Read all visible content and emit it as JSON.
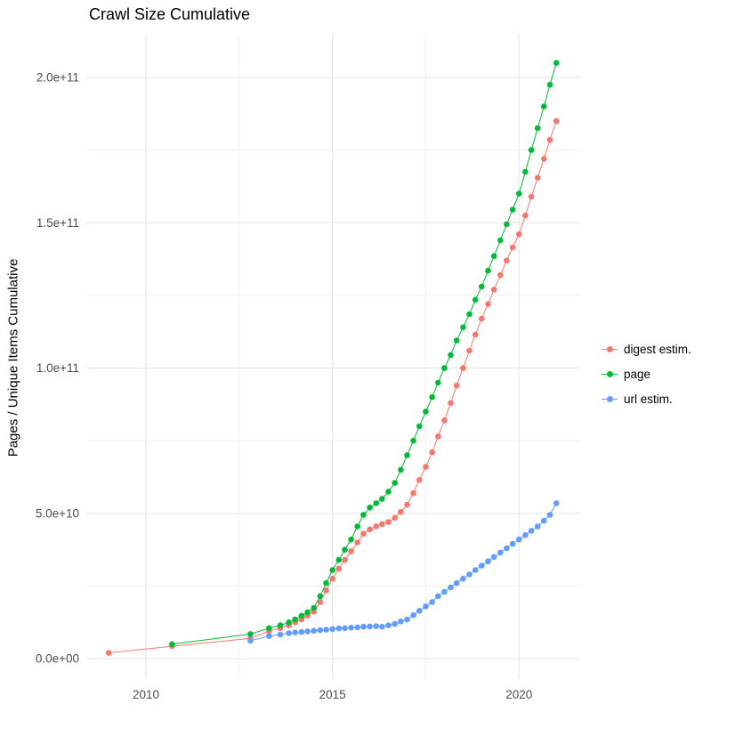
{
  "title": "Crawl Size Cumulative",
  "y_axis_title": "Pages / Unique Items Cumulative",
  "legend": {
    "items": [
      {
        "label": "digest estim.",
        "color": "#F8766D"
      },
      {
        "label": "page",
        "color": "#00BA38"
      },
      {
        "label": "url estim.",
        "color": "#619CFF"
      }
    ]
  },
  "chart_data": {
    "type": "scatter",
    "title": "Crawl Size Cumulative",
    "xlabel": "",
    "ylabel": "Pages / Unique Items Cumulative",
    "y_unit": "values stored in billions (1e9 items)",
    "xlim": [
      2008.4,
      2021.64
    ],
    "ylim": [
      -7,
      215
    ],
    "grid": true,
    "legend_position": "right",
    "x_ticks": {
      "major": [
        2010,
        2015,
        2020
      ],
      "minor": [
        2012.5,
        2017.5
      ],
      "labels": [
        "2010",
        "2015",
        "2020"
      ]
    },
    "y_ticks": {
      "major": [
        0,
        50,
        100,
        150,
        200
      ],
      "minor": [
        25,
        75,
        125,
        175
      ],
      "labels": [
        "0.0e+00",
        "5.0e+10",
        "1.0e+11",
        "1.5e+11",
        "2.0e+11"
      ]
    },
    "colors": {
      "digest": "#F8766D",
      "page": "#00BA38",
      "url": "#619CFF",
      "grid_major": "#e3e3e3",
      "grid_minor": "#f1f1f1",
      "axis_text": "#4d4d4d"
    },
    "series": [
      {
        "name": "digest estim.",
        "color": "#F8766D",
        "points": [
          [
            2009,
            2
          ],
          [
            2010.7,
            4.3
          ],
          [
            2012.8,
            7
          ],
          [
            2013.3,
            9.5
          ],
          [
            2013.6,
            10.5
          ],
          [
            2013.83,
            11.5
          ],
          [
            2014,
            12.5
          ],
          [
            2014.17,
            13.5
          ],
          [
            2014.33,
            14.8
          ],
          [
            2014.5,
            16.2
          ],
          [
            2014.67,
            19.5
          ],
          [
            2014.83,
            23.5
          ],
          [
            2015,
            27.5
          ],
          [
            2015.17,
            31
          ],
          [
            2015.33,
            34
          ],
          [
            2015.5,
            37
          ],
          [
            2015.67,
            40
          ],
          [
            2015.83,
            43
          ],
          [
            2016,
            44.5
          ],
          [
            2016.17,
            45.5
          ],
          [
            2016.33,
            46.3
          ],
          [
            2016.5,
            47
          ],
          [
            2016.67,
            48.5
          ],
          [
            2016.83,
            50.5
          ],
          [
            2017,
            53
          ],
          [
            2017.17,
            57
          ],
          [
            2017.33,
            61.5
          ],
          [
            2017.5,
            66
          ],
          [
            2017.67,
            71
          ],
          [
            2017.83,
            76.5
          ],
          [
            2018,
            82
          ],
          [
            2018.17,
            88
          ],
          [
            2018.33,
            94
          ],
          [
            2018.5,
            100
          ],
          [
            2018.67,
            106
          ],
          [
            2018.83,
            111.5
          ],
          [
            2019,
            117
          ],
          [
            2019.17,
            122
          ],
          [
            2019.33,
            127
          ],
          [
            2019.5,
            132
          ],
          [
            2019.67,
            137
          ],
          [
            2019.83,
            141.5
          ],
          [
            2020,
            146
          ],
          [
            2020.17,
            152.5
          ],
          [
            2020.33,
            159
          ],
          [
            2020.5,
            165.5
          ],
          [
            2020.67,
            172
          ],
          [
            2020.83,
            178.5
          ],
          [
            2021,
            185
          ]
        ]
      },
      {
        "name": "page",
        "color": "#00BA38",
        "points": [
          [
            2010.7,
            5
          ],
          [
            2012.8,
            8.5
          ],
          [
            2013.3,
            10.5
          ],
          [
            2013.6,
            11.5
          ],
          [
            2013.83,
            12.5
          ],
          [
            2014,
            13.5
          ],
          [
            2014.17,
            14.8
          ],
          [
            2014.33,
            16
          ],
          [
            2014.5,
            17.5
          ],
          [
            2014.67,
            21.5
          ],
          [
            2014.83,
            26
          ],
          [
            2015,
            30.5
          ],
          [
            2015.17,
            34
          ],
          [
            2015.33,
            37.5
          ],
          [
            2015.5,
            41
          ],
          [
            2015.67,
            45.5
          ],
          [
            2015.83,
            49.5
          ],
          [
            2016,
            52
          ],
          [
            2016.17,
            53.5
          ],
          [
            2016.33,
            55
          ],
          [
            2016.5,
            57.5
          ],
          [
            2016.67,
            60.5
          ],
          [
            2016.83,
            65
          ],
          [
            2017,
            70
          ],
          [
            2017.17,
            75
          ],
          [
            2017.33,
            80
          ],
          [
            2017.5,
            85
          ],
          [
            2017.67,
            90
          ],
          [
            2017.83,
            95
          ],
          [
            2018,
            100
          ],
          [
            2018.17,
            104.5
          ],
          [
            2018.33,
            109.5
          ],
          [
            2018.5,
            114
          ],
          [
            2018.67,
            118.5
          ],
          [
            2018.83,
            123.5
          ],
          [
            2019,
            128
          ],
          [
            2019.17,
            133.5
          ],
          [
            2019.33,
            138.5
          ],
          [
            2019.5,
            144
          ],
          [
            2019.67,
            149.5
          ],
          [
            2019.83,
            154.5
          ],
          [
            2020,
            160
          ],
          [
            2020.17,
            167.5
          ],
          [
            2020.33,
            175
          ],
          [
            2020.5,
            182.5
          ],
          [
            2020.67,
            190
          ],
          [
            2020.83,
            197.5
          ],
          [
            2021,
            205
          ]
        ]
      },
      {
        "name": "url estim.",
        "color": "#619CFF",
        "points": [
          [
            2012.8,
            6.2
          ],
          [
            2013.3,
            7.8
          ],
          [
            2013.6,
            8.3
          ],
          [
            2013.83,
            8.8
          ],
          [
            2014,
            9
          ],
          [
            2014.17,
            9.2
          ],
          [
            2014.33,
            9.4
          ],
          [
            2014.5,
            9.6
          ],
          [
            2014.67,
            9.8
          ],
          [
            2014.83,
            10
          ],
          [
            2015,
            10.2
          ],
          [
            2015.17,
            10.4
          ],
          [
            2015.33,
            10.5
          ],
          [
            2015.5,
            10.7
          ],
          [
            2015.67,
            10.8
          ],
          [
            2015.83,
            11
          ],
          [
            2016,
            11.1
          ],
          [
            2016.17,
            11.2
          ],
          [
            2016.33,
            11
          ],
          [
            2016.5,
            11.5
          ],
          [
            2016.67,
            12
          ],
          [
            2016.83,
            12.8
          ],
          [
            2017,
            13.5
          ],
          [
            2017.17,
            15
          ],
          [
            2017.33,
            16.5
          ],
          [
            2017.5,
            18
          ],
          [
            2017.67,
            19.5
          ],
          [
            2017.83,
            21.5
          ],
          [
            2018,
            23
          ],
          [
            2018.17,
            24.5
          ],
          [
            2018.33,
            26
          ],
          [
            2018.5,
            27.5
          ],
          [
            2018.67,
            29
          ],
          [
            2018.83,
            30.5
          ],
          [
            2019,
            32
          ],
          [
            2019.17,
            33.5
          ],
          [
            2019.33,
            35
          ],
          [
            2019.5,
            36.5
          ],
          [
            2019.67,
            38
          ],
          [
            2019.83,
            39.5
          ],
          [
            2020,
            41
          ],
          [
            2020.17,
            42.5
          ],
          [
            2020.33,
            44
          ],
          [
            2020.5,
            45.5
          ],
          [
            2020.67,
            47.5
          ],
          [
            2020.83,
            49.5
          ],
          [
            2021,
            53.5
          ]
        ]
      }
    ]
  }
}
